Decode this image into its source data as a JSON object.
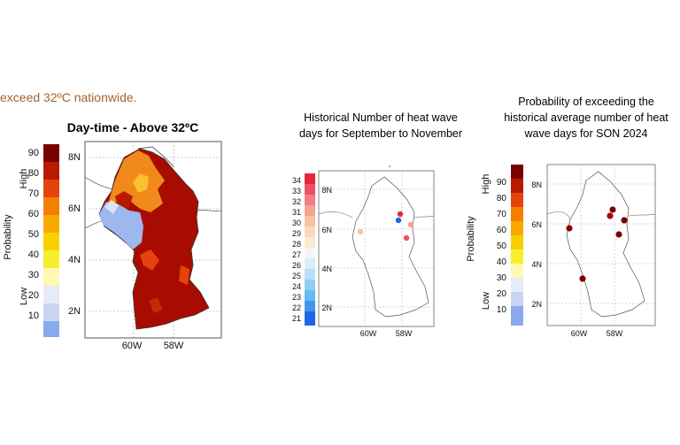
{
  "intro_text": "exceed 32ºC nationwide.",
  "panel1": {
    "title": "Day-time - Above 32ºC",
    "scale_label": "Probability",
    "high_label": "High",
    "low_label": "Low",
    "colorbar": {
      "ticks": [
        "90",
        "80",
        "70",
        "60",
        "50",
        "40",
        "30",
        "20",
        "10"
      ],
      "colors": [
        "#7a0000",
        "#b81a00",
        "#e6420e",
        "#f57e00",
        "#f9a800",
        "#f7d000",
        "#f7ee30",
        "#fff9b4",
        "#e6ecf6",
        "#c9d5f0",
        "#8aaaee"
      ]
    },
    "lat_labels": [
      "8N",
      "6N",
      "4N",
      "2N"
    ],
    "lon_labels": [
      "60W",
      "58W"
    ]
  },
  "panel2": {
    "title_lines": [
      "Historical Number of heat wave",
      "days for September to November"
    ],
    "colorbar": {
      "ticks": [
        "34",
        "33",
        "32",
        "31",
        "30",
        "29",
        "28",
        "27",
        "26",
        "25",
        "24",
        "23",
        "22",
        "21"
      ],
      "colors": [
        "#e8263b",
        "#ef5067",
        "#f47d86",
        "#f7a28f",
        "#f8c2a2",
        "#f9dab8",
        "#fbead2",
        "#f5f5f5",
        "#d8eef9",
        "#b6e1f6",
        "#8fcff2",
        "#66bbee",
        "#3f98ec",
        "#1e66e8"
      ]
    },
    "lat_labels": [
      "8N",
      "6N",
      "4N",
      "2N"
    ],
    "lon_labels": [
      "60W",
      "58W"
    ]
  },
  "panel3": {
    "title_lines": [
      "Probability of exceeding the",
      "historical average number of heat",
      "wave days for SON 2024"
    ],
    "scale_label": "Probability",
    "high_label": "High",
    "low_label": "Low",
    "colorbar": {
      "ticks": [
        "90",
        "80",
        "70",
        "60",
        "50",
        "40",
        "30",
        "20",
        "10"
      ],
      "colors": [
        "#7a0000",
        "#b81a00",
        "#e6420e",
        "#f57e00",
        "#f9a800",
        "#f7d000",
        "#f7ee30",
        "#fff9b4",
        "#e6ecf6",
        "#c9d5f0",
        "#8aaaee"
      ]
    },
    "lat_labels": [
      "8N",
      "6N",
      "4N",
      "2N"
    ],
    "lon_labels": [
      "60W",
      "58W"
    ]
  }
}
